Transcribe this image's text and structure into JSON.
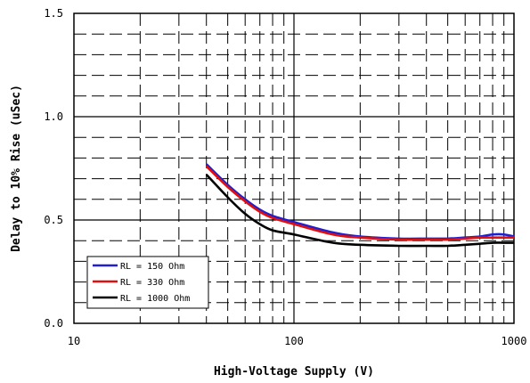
{
  "chart_data": {
    "type": "line",
    "xlabel": "High-Voltage Supply (V)",
    "ylabel": "Delay to 10% Rise (uSec)",
    "xscale": "log",
    "xlim": [
      10,
      1000
    ],
    "ylim": [
      0.0,
      1.5
    ],
    "x_ticks": [
      "10",
      "100",
      "1000"
    ],
    "y_ticks": [
      "0.0",
      "0.5",
      "1.0",
      "1.5"
    ],
    "grid": "major solid, minor dashed",
    "legend_position": "bottom-left",
    "series": [
      {
        "name": "RL = 150 Ohm",
        "color": "#1f1fd0",
        "x": [
          40,
          50,
          60,
          70,
          80,
          100,
          150,
          200,
          300,
          400,
          500,
          600,
          700,
          800,
          900,
          1000
        ],
        "y": [
          0.77,
          0.67,
          0.6,
          0.55,
          0.52,
          0.49,
          0.44,
          0.42,
          0.41,
          0.41,
          0.41,
          0.415,
          0.42,
          0.43,
          0.43,
          0.42
        ]
      },
      {
        "name": "RL = 330 Ohm",
        "color": "#e01010",
        "x": [
          40,
          50,
          60,
          70,
          80,
          100,
          150,
          200,
          300,
          400,
          500,
          600,
          700,
          800,
          900,
          1000
        ],
        "y": [
          0.76,
          0.66,
          0.59,
          0.54,
          0.51,
          0.48,
          0.43,
          0.415,
          0.405,
          0.405,
          0.405,
          0.41,
          0.415,
          0.415,
          0.415,
          0.415
        ]
      },
      {
        "name": "RL = 1000 Ohm",
        "color": "#000000",
        "x": [
          40,
          50,
          60,
          70,
          80,
          100,
          150,
          200,
          300,
          400,
          500,
          600,
          700,
          800,
          900,
          1000
        ],
        "y": [
          0.72,
          0.61,
          0.53,
          0.48,
          0.45,
          0.43,
          0.39,
          0.38,
          0.375,
          0.375,
          0.375,
          0.38,
          0.385,
          0.39,
          0.39,
          0.39
        ]
      }
    ]
  }
}
